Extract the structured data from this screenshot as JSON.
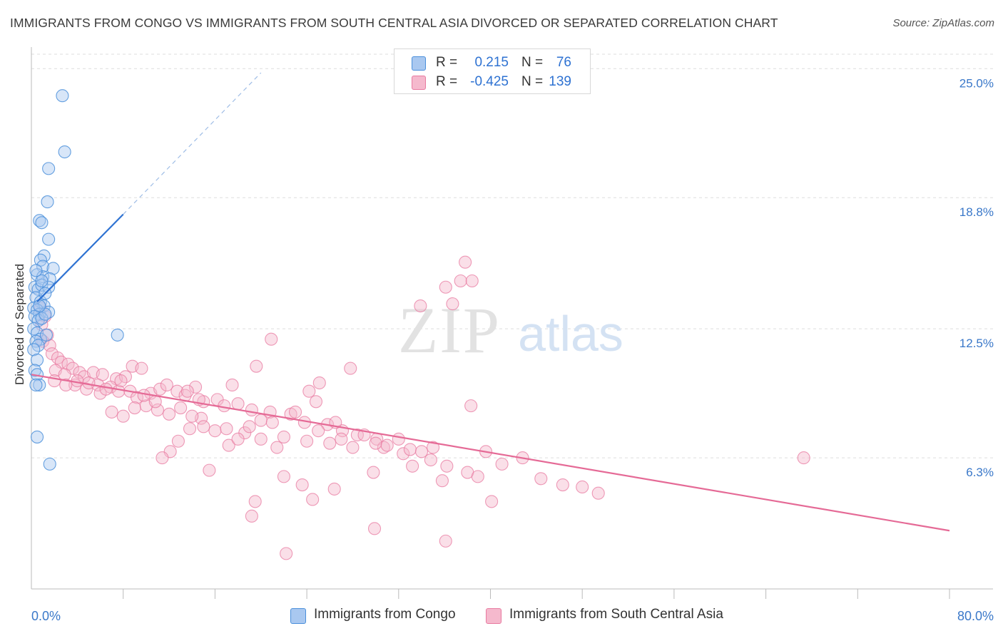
{
  "title": "IMMIGRANTS FROM CONGO VS IMMIGRANTS FROM SOUTH CENTRAL ASIA DIVORCED OR SEPARATED CORRELATION CHART",
  "source": "Source: ZipAtlas.com",
  "watermark": {
    "zip": "ZIP",
    "atlas": "atlas"
  },
  "legend": {
    "series1": {
      "r_label": "R =",
      "r_value": "0.215",
      "n_label": "N =",
      "n_value": "76"
    },
    "series2": {
      "r_label": "R =",
      "r_value": "-0.425",
      "n_label": "N =",
      "n_value": "139"
    }
  },
  "colors": {
    "blue": "#4a8fdb",
    "blue_fill": "#a9c8f0",
    "blue_line": "#2e72d2",
    "pink": "#e87aa0",
    "pink_fill": "#f5b9cd",
    "pink_line": "#e56a96",
    "axis_text": "#3a78c9",
    "grid": "#dddddd"
  },
  "chart_data": {
    "type": "scatter",
    "title": "IMMIGRANTS FROM CONGO VS IMMIGRANTS FROM SOUTH CENTRAL ASIA DIVORCED OR SEPARATED CORRELATION CHART",
    "xlabel": "",
    "ylabel": "Divorced or Separated",
    "xlim": [
      0,
      80
    ],
    "ylim": [
      0,
      25.9
    ],
    "x_tick_labels": [
      "0.0%",
      "80.0%"
    ],
    "y_ticks": [
      6.3,
      12.5,
      18.8,
      25.0
    ],
    "y_tick_labels": [
      "6.3%",
      "12.5%",
      "18.8%",
      "25.0%"
    ],
    "grid": true,
    "legend_position": "top-center",
    "series": [
      {
        "name": "Immigrants from Congo",
        "color": "blue",
        "r": 0.215,
        "n": 76,
        "trend": {
          "x": [
            0.5,
            8.0
          ],
          "y": [
            13.8,
            18.0
          ],
          "dashed_to": [
            20.0,
            24.8
          ]
        },
        "points": [
          [
            2.7,
            23.7
          ],
          [
            2.9,
            21.0
          ],
          [
            1.5,
            20.2
          ],
          [
            1.4,
            18.6
          ],
          [
            0.7,
            17.7
          ],
          [
            0.9,
            17.6
          ],
          [
            1.5,
            16.8
          ],
          [
            1.1,
            16.0
          ],
          [
            0.8,
            15.8
          ],
          [
            1.0,
            15.5
          ],
          [
            1.9,
            15.4
          ],
          [
            0.5,
            15.1
          ],
          [
            1.0,
            15.0
          ],
          [
            1.6,
            14.9
          ],
          [
            0.3,
            14.5
          ],
          [
            0.6,
            14.4
          ],
          [
            0.9,
            14.6
          ],
          [
            1.5,
            14.5
          ],
          [
            0.4,
            14.0
          ],
          [
            0.8,
            13.8
          ],
          [
            1.1,
            13.6
          ],
          [
            0.2,
            13.5
          ],
          [
            0.5,
            13.4
          ],
          [
            0.7,
            13.2
          ],
          [
            1.5,
            13.3
          ],
          [
            0.3,
            13.1
          ],
          [
            0.6,
            12.9
          ],
          [
            0.9,
            13.0
          ],
          [
            1.2,
            13.2
          ],
          [
            0.2,
            12.5
          ],
          [
            0.5,
            12.3
          ],
          [
            0.8,
            12.0
          ],
          [
            1.3,
            12.2
          ],
          [
            7.5,
            12.2
          ],
          [
            0.4,
            11.9
          ],
          [
            0.6,
            11.7
          ],
          [
            0.2,
            11.5
          ],
          [
            0.5,
            11.0
          ],
          [
            0.3,
            10.5
          ],
          [
            0.5,
            10.3
          ],
          [
            0.7,
            9.8
          ],
          [
            0.4,
            9.8
          ],
          [
            0.5,
            7.3
          ],
          [
            1.6,
            6.0
          ],
          [
            0.9,
            14.8
          ],
          [
            0.4,
            15.3
          ],
          [
            1.2,
            14.2
          ],
          [
            0.7,
            13.6
          ]
        ]
      },
      {
        "name": "Immigrants from South Central Asia",
        "color": "pink",
        "r": -0.425,
        "n": 139,
        "trend": {
          "x": [
            0.0,
            80.0
          ],
          "y": [
            10.3,
            2.8
          ]
        },
        "points": [
          [
            0.8,
            13.5
          ],
          [
            1.2,
            13.1
          ],
          [
            0.9,
            12.7
          ],
          [
            1.4,
            12.2
          ],
          [
            1.0,
            11.9
          ],
          [
            1.6,
            11.7
          ],
          [
            1.8,
            11.3
          ],
          [
            2.3,
            11.1
          ],
          [
            2.6,
            10.9
          ],
          [
            3.2,
            10.8
          ],
          [
            2.1,
            10.5
          ],
          [
            3.6,
            10.6
          ],
          [
            2.9,
            10.3
          ],
          [
            4.2,
            10.4
          ],
          [
            4.6,
            10.2
          ],
          [
            5.4,
            10.4
          ],
          [
            6.2,
            10.3
          ],
          [
            7.4,
            10.1
          ],
          [
            8.2,
            10.2
          ],
          [
            8.8,
            10.7
          ],
          [
            9.6,
            10.6
          ],
          [
            3.8,
            9.8
          ],
          [
            4.8,
            9.6
          ],
          [
            5.8,
            9.8
          ],
          [
            6.9,
            9.7
          ],
          [
            7.6,
            9.5
          ],
          [
            8.6,
            9.5
          ],
          [
            9.2,
            9.2
          ],
          [
            10.4,
            9.4
          ],
          [
            11.2,
            9.6
          ],
          [
            12.7,
            9.5
          ],
          [
            13.4,
            9.3
          ],
          [
            14.3,
            9.7
          ],
          [
            15.0,
            9.0
          ],
          [
            16.2,
            9.1
          ],
          [
            18.0,
            8.9
          ],
          [
            19.2,
            8.6
          ],
          [
            20.8,
            8.5
          ],
          [
            22.6,
            8.4
          ],
          [
            23.8,
            8.0
          ],
          [
            25.8,
            7.9
          ],
          [
            27.1,
            7.6
          ],
          [
            28.4,
            7.4
          ],
          [
            30.1,
            7.2
          ],
          [
            30.7,
            6.8
          ],
          [
            32.4,
            6.5
          ],
          [
            34.8,
            6.2
          ],
          [
            36.2,
            5.9
          ],
          [
            38.0,
            5.6
          ],
          [
            39.6,
            6.6
          ],
          [
            41.0,
            6.0
          ],
          [
            42.8,
            6.3
          ],
          [
            44.4,
            5.3
          ],
          [
            46.3,
            5.0
          ],
          [
            48.0,
            4.9
          ],
          [
            49.4,
            4.6
          ],
          [
            36.1,
            14.5
          ],
          [
            37.4,
            14.8
          ],
          [
            36.7,
            13.7
          ],
          [
            33.9,
            13.6
          ],
          [
            37.8,
            15.7
          ],
          [
            38.4,
            14.8
          ],
          [
            20.9,
            12.0
          ],
          [
            27.8,
            10.6
          ],
          [
            25.1,
            9.9
          ],
          [
            24.8,
            9.0
          ],
          [
            38.3,
            8.8
          ],
          [
            19.6,
            10.7
          ],
          [
            17.5,
            9.8
          ],
          [
            16.8,
            8.8
          ],
          [
            14.8,
            8.2
          ],
          [
            13.8,
            7.7
          ],
          [
            12.8,
            7.1
          ],
          [
            12.1,
            6.6
          ],
          [
            11.4,
            6.3
          ],
          [
            15.5,
            5.7
          ],
          [
            17.2,
            6.9
          ],
          [
            18.6,
            7.5
          ],
          [
            20.0,
            7.2
          ],
          [
            21.4,
            6.8
          ],
          [
            22.0,
            5.4
          ],
          [
            23.6,
            5.0
          ],
          [
            24.5,
            4.3
          ],
          [
            19.2,
            3.5
          ],
          [
            19.5,
            4.2
          ],
          [
            22.2,
            1.7
          ],
          [
            29.9,
            2.9
          ],
          [
            36.1,
            2.3
          ],
          [
            40.1,
            4.2
          ],
          [
            26.4,
            4.8
          ],
          [
            29.8,
            5.6
          ],
          [
            33.2,
            5.9
          ],
          [
            35.8,
            5.2
          ],
          [
            38.9,
            5.4
          ],
          [
            67.3,
            6.3
          ],
          [
            6.0,
            9.4
          ],
          [
            7.0,
            8.5
          ],
          [
            8.0,
            8.3
          ],
          [
            9.0,
            8.7
          ],
          [
            10.0,
            8.8
          ],
          [
            11.0,
            8.6
          ],
          [
            12.0,
            8.4
          ],
          [
            13.0,
            8.7
          ],
          [
            14.0,
            8.3
          ],
          [
            15.0,
            7.8
          ],
          [
            16.0,
            7.6
          ],
          [
            17.0,
            7.7
          ],
          [
            18.0,
            7.2
          ],
          [
            19.0,
            7.8
          ],
          [
            20.0,
            8.1
          ],
          [
            21.0,
            8.0
          ],
          [
            22.0,
            7.3
          ],
          [
            23.0,
            8.5
          ],
          [
            24.0,
            7.1
          ],
          [
            25.0,
            7.6
          ],
          [
            26.0,
            7.0
          ],
          [
            27.0,
            7.2
          ],
          [
            28.0,
            6.8
          ],
          [
            29.0,
            7.4
          ],
          [
            30.0,
            7.0
          ],
          [
            31.0,
            6.9
          ],
          [
            32.0,
            7.2
          ],
          [
            33.0,
            6.7
          ],
          [
            34.0,
            6.6
          ],
          [
            35.0,
            6.8
          ],
          [
            2.0,
            10.0
          ],
          [
            3.0,
            9.8
          ],
          [
            4.0,
            10.0
          ],
          [
            5.0,
            9.9
          ],
          [
            6.5,
            9.6
          ],
          [
            7.8,
            10.0
          ],
          [
            9.8,
            9.3
          ],
          [
            10.8,
            9.0
          ],
          [
            11.8,
            9.8
          ],
          [
            13.6,
            9.5
          ],
          [
            14.6,
            9.1
          ],
          [
            24.2,
            9.5
          ],
          [
            26.5,
            8.0
          ]
        ]
      }
    ]
  },
  "bottom_legend": {
    "item1": "Immigrants from Congo",
    "item2": "Immigrants from South Central Asia"
  }
}
